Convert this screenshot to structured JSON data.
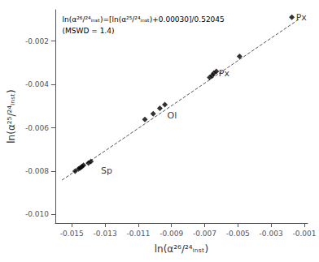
{
  "chart_data": {
    "type": "scatter",
    "xlabel": "ln(α²⁶/²⁴ᵢₙₛₜ)",
    "ylabel": "ln(α²⁵/²⁴ᵢₙₛₜ)",
    "series": [
      {
        "type": "line",
        "x": [
          -0.0156,
          -0.0013
        ],
        "values": [
          -0.00841902,
          -0.000976585
        ],
        "line_style": "dashed",
        "color": "#555555"
      },
      {
        "type": "scatter",
        "marker": "diamond",
        "color": "black",
        "x": [
          -0.0148,
          -0.0146,
          -0.0145,
          -0.0144,
          -0.0143,
          -0.014,
          -0.01385
        ],
        "values": [
          -0.008,
          -0.0079,
          -0.00785,
          -0.0078,
          -0.00773,
          -0.00763,
          -0.00755
        ]
      },
      {
        "type": "scatter",
        "marker": "diamond",
        "color": "black",
        "x": [
          -0.0106,
          -0.0101,
          -0.0097,
          -0.0094
        ],
        "values": [
          -0.00562,
          -0.00535,
          -0.0051,
          -0.00493
        ]
      },
      {
        "type": "scatter",
        "marker": "diamond",
        "color": "black",
        "x": [
          -0.0067,
          -0.00655,
          -0.00645,
          -0.0063
        ],
        "values": [
          -0.00368,
          -0.00358,
          -0.00348,
          -0.0034
        ]
      },
      {
        "type": "scatter",
        "marker": "diamond",
        "color": "black",
        "x": [
          -0.0049,
          -0.00175
        ],
        "values": [
          -0.0027,
          -0.0009
        ]
      }
    ],
    "annotations": [
      {
        "text": "ln(α²⁶/²⁴ᵢₙₛₜ)=[ln(α²⁵/²⁴ᵢₙₛₜ)+0.00030]/0.52045"
      },
      {
        "text": "(MSWD = 1.4)"
      },
      {
        "text": "Sp",
        "x": -0.0133,
        "y": -0.008
      },
      {
        "text": "Ol",
        "x": -0.0093,
        "y": -0.00545
      },
      {
        "text": "Px",
        "x": -0.0062,
        "y": -0.00348
      },
      {
        "text": "Px",
        "x": -0.00155,
        "y": -0.00092
      }
    ],
    "xlim": [
      -0.016,
      -0.0008
    ],
    "ylim": [
      -0.0104,
      -0.00055
    ],
    "xticks": [
      -0.015,
      -0.013,
      -0.011,
      -0.009,
      -0.007,
      -0.005,
      -0.003,
      -0.001
    ],
    "yticks": [
      {
        "value": -0.01,
        "label": "-0.010"
      },
      -0.008,
      -0.006,
      -0.004,
      -0.002
    ],
    "grid": false
  }
}
